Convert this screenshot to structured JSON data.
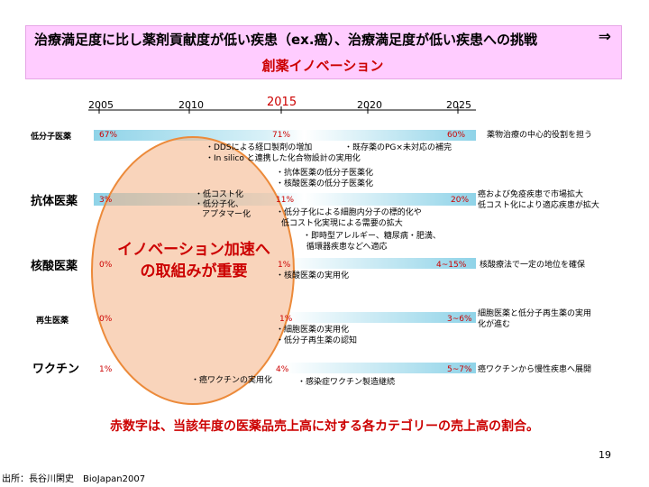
{
  "title": {
    "line1": "治療満足度に比し薬剤貢献度が低い疾患（ex.癌）、治療満足度が低い疾患への挑戦",
    "arrow": "⇒",
    "line2": "創薬イノベーション"
  },
  "years": [
    "2005",
    "2010",
    "2015",
    "2020",
    "2025"
  ],
  "categories": {
    "small_molecule": {
      "label": "低分子医薬",
      "v2005": "67%",
      "v2015": "71%",
      "v2025": "60%",
      "desc": "薬物治療の中心的役割を担う",
      "notes": [
        "・DDSによる経口製剤の増加",
        "・既存薬のPG×未対応の補完",
        "・In silico と連携した化合物設計の実用化"
      ]
    },
    "antibody": {
      "label": "抗体医薬",
      "v2005": "3%",
      "v2015": "11%",
      "v2025": "20%",
      "desc": [
        "癌および免疫疾患で市場拡大",
        "低コスト化により適応疾患が拡大"
      ],
      "notes_top": [
        "・抗体医薬の低分子医薬化",
        "・核酸医薬の低分子医薬化"
      ],
      "notes_left": [
        "・低コスト化",
        "・低分子化、",
        "アプタマー化"
      ],
      "notes_bottom": [
        "・低分子化による細胞内分子の標的化や",
        "低コスト化実現による需要の拡大",
        "・即時型アレルギー、糖尿病・肥満、",
        "循環器疾患などへ適応"
      ]
    },
    "nucleic": {
      "label": "核酸医薬",
      "v2005": "0%",
      "v2015": "1%",
      "v2025": "4~15%",
      "desc": "核酸療法で一定の地位を確保",
      "notes": [
        "・核酸医薬の実用化"
      ]
    },
    "regenerative": {
      "label": "再生医薬",
      "v2005": "0%",
      "v2015": "1%",
      "v2025": "3~6%",
      "desc": [
        "細胞医薬と低分子再生薬の実用",
        "化が進む"
      ],
      "notes": [
        "・細胞医薬の実用化",
        "・低分子再生薬の認知"
      ]
    },
    "vaccine": {
      "label": "ワクチン",
      "v2005": "1%",
      "v2015": "4%",
      "v2025": "5~7%",
      "desc": "癌ワクチンから慢性疾患へ展開",
      "notes_left": [
        "・癌ワクチンの実用化"
      ],
      "notes_right": [
        "・感染症ワクチン製造継続"
      ]
    }
  },
  "circle_text": [
    "イノベーション加速へ",
    "の取組みが重要"
  ],
  "footer_note": "赤数字は、当該年度の医薬品売上高に対する各カテゴリーの売上高の割合。",
  "page_number": "19",
  "source": "出所：長谷川閑史　BioJapan2007",
  "colors": {
    "title_bg": "#ffccff",
    "red": "#cc0000",
    "band": "#aee4f0",
    "circle": "#f4b183"
  }
}
